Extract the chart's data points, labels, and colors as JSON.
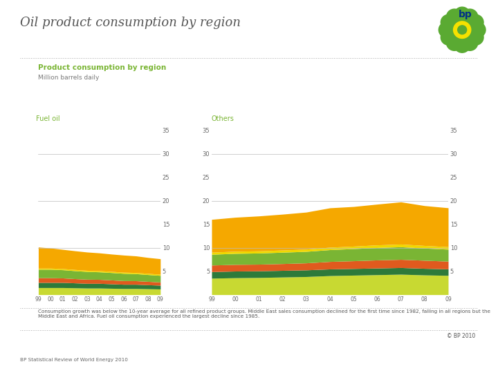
{
  "title": "Oil product consumption by region",
  "subtitle": "Product consumption by region",
  "subtitle2": "Million barrels daily",
  "label_left": "Fuel oil",
  "label_right": "Others",
  "x_labels": [
    "99",
    "00",
    "01",
    "02",
    "03",
    "04",
    "05",
    "06",
    "07",
    "08",
    "09"
  ],
  "colors": [
    "#c8d932",
    "#2d7a3a",
    "#e05a1e",
    "#7ab534",
    "#f0d800",
    "#f5a800"
  ],
  "fuel_oil_layers": [
    [
      1.5,
      1.5,
      1.5,
      1.45,
      1.4,
      1.4,
      1.35,
      1.3,
      1.3,
      1.25,
      1.2
    ],
    [
      1.1,
      1.1,
      1.1,
      1.05,
      1.0,
      1.0,
      0.95,
      0.9,
      0.9,
      0.85,
      0.8
    ],
    [
      1.0,
      1.0,
      0.95,
      0.9,
      0.88,
      0.85,
      0.82,
      0.78,
      0.76,
      0.72,
      0.68
    ],
    [
      1.8,
      1.8,
      1.75,
      1.7,
      1.65,
      1.6,
      1.58,
      1.55,
      1.5,
      1.45,
      1.42
    ],
    [
      0.25,
      0.25,
      0.25,
      0.25,
      0.25,
      0.25,
      0.25,
      0.25,
      0.25,
      0.25,
      0.25
    ],
    [
      4.5,
      4.3,
      4.1,
      4.0,
      3.9,
      3.8,
      3.7,
      3.65,
      3.55,
      3.4,
      3.3
    ]
  ],
  "others_layers": [
    [
      3.5,
      3.6,
      3.65,
      3.75,
      3.85,
      4.05,
      4.15,
      4.25,
      4.35,
      4.2,
      4.1
    ],
    [
      1.4,
      1.42,
      1.42,
      1.42,
      1.42,
      1.42,
      1.42,
      1.42,
      1.42,
      1.4,
      1.38
    ],
    [
      1.4,
      1.42,
      1.42,
      1.45,
      1.5,
      1.6,
      1.65,
      1.72,
      1.75,
      1.72,
      1.65
    ],
    [
      2.3,
      2.35,
      2.38,
      2.42,
      2.45,
      2.52,
      2.58,
      2.65,
      2.68,
      2.6,
      2.55
    ],
    [
      0.45,
      0.46,
      0.46,
      0.47,
      0.48,
      0.52,
      0.54,
      0.56,
      0.58,
      0.56,
      0.54
    ],
    [
      7.0,
      7.25,
      7.45,
      7.65,
      7.9,
      8.4,
      8.45,
      8.7,
      9.0,
      8.5,
      8.3
    ]
  ],
  "ylim": [
    0,
    35
  ],
  "yticks": [
    0,
    5,
    10,
    15,
    20,
    25,
    30,
    35
  ],
  "grid_lines": [
    10,
    20,
    30
  ],
  "bg_color": "#ffffff",
  "title_color": "#666666",
  "subtitle_color": "#7ab534",
  "annotation": "Consumption growth was below the 10-year average for all refined product groups. Middle East sales consumption declined for the first time since 1982, falling in all regions but the Middle East and Africa. Fuel oil consumption experienced the largest decline since 1985.",
  "copyright": "© BP 2010",
  "footer": "BP Statistical Review of World Energy 2010"
}
